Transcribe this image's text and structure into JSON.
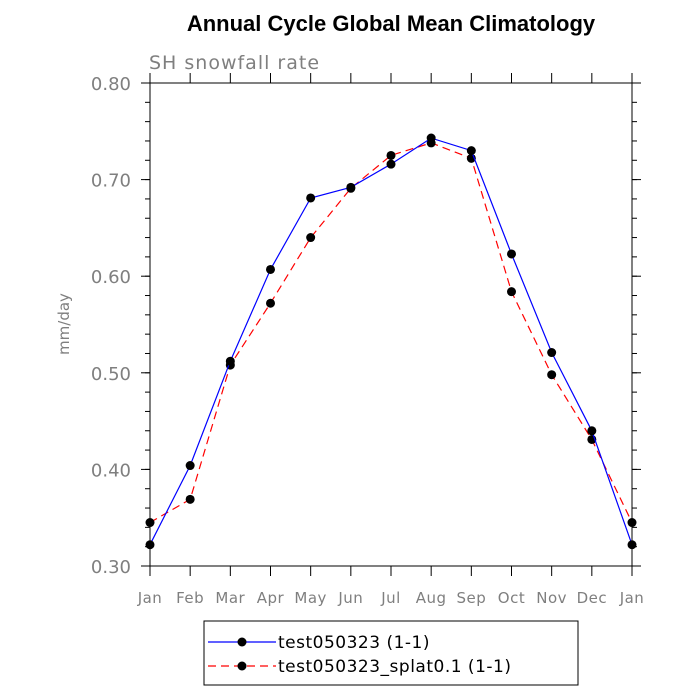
{
  "chart_data": {
    "type": "line",
    "title": "Annual Cycle Global Mean Climatology",
    "subtitle": "SH snowfall rate",
    "xlabel": "",
    "ylabel": "mm/day",
    "categories": [
      "Jan",
      "Feb",
      "Mar",
      "Apr",
      "May",
      "Jun",
      "Jul",
      "Aug",
      "Sep",
      "Oct",
      "Nov",
      "Dec",
      "Jan"
    ],
    "ylim": [
      0.3,
      0.8
    ],
    "yticks": [
      "0.30",
      "0.40",
      "0.50",
      "0.60",
      "0.70",
      "0.80"
    ],
    "yminor_step": 0.02,
    "grid": false,
    "legend_position": "bottom-center",
    "series": [
      {
        "name": "test050323 (1-1)",
        "color": "#0000ff",
        "dash": "solid",
        "values": [
          0.322,
          0.404,
          0.512,
          0.607,
          0.681,
          0.692,
          0.716,
          0.743,
          0.73,
          0.623,
          0.521,
          0.44,
          0.322
        ]
      },
      {
        "name": "test050323_splat0.1 (1-1)",
        "color": "#ff0000",
        "dash": "dashed",
        "values": [
          0.345,
          0.369,
          0.508,
          0.572,
          0.64,
          0.691,
          0.725,
          0.738,
          0.722,
          0.584,
          0.498,
          0.431,
          0.345
        ]
      }
    ]
  }
}
